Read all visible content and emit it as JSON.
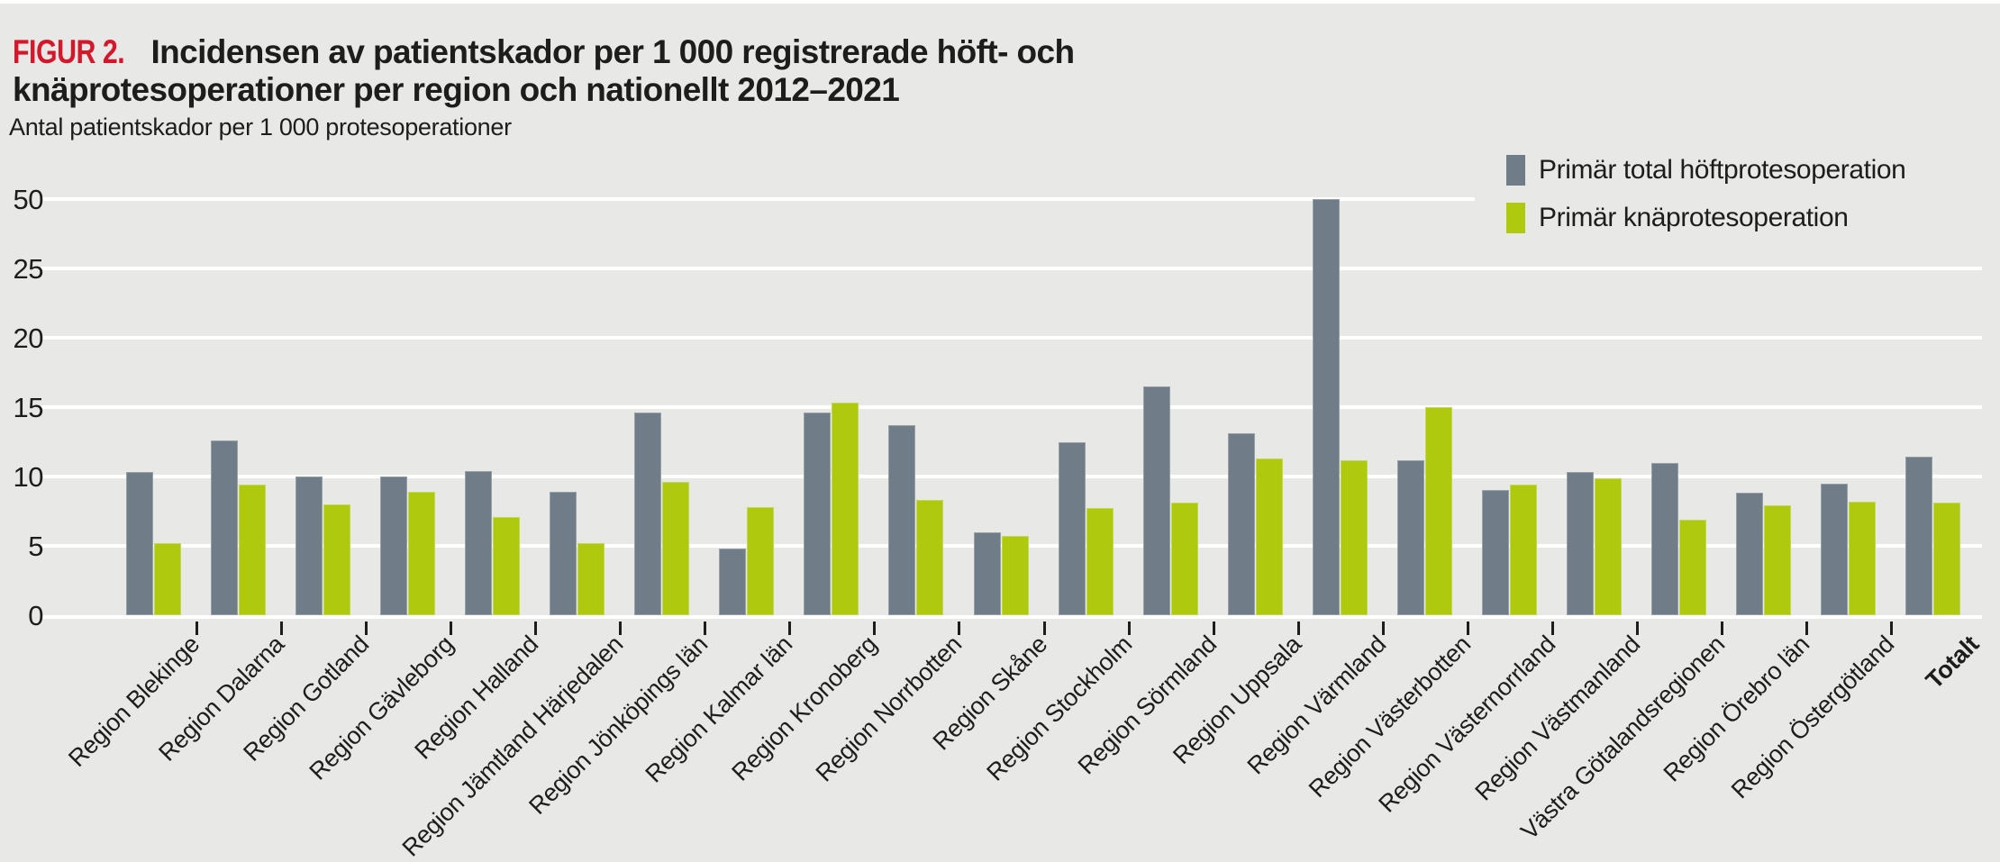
{
  "figure": {
    "label": "FIGUR 2.",
    "title_line1": "Incidensen av patientskador per 1 000 registrerade höft- och",
    "title_line2": "knäprotesoperationer per region och nationellt 2012–2021",
    "label_color": "#d5172b",
    "text_color": "#1d1d1b",
    "background_color": "#e8e8e7",
    "gridline_color": "#ffffff"
  },
  "chart_data": {
    "type": "bar",
    "title": "FIGUR 2. Incidensen av patientskador per 1 000 registrerade höft- och knäprotesoperationer per region och nationellt 2012–2021",
    "ylabel": "Antal patientskador per 1 000  protesoperationer",
    "xlabel": "",
    "grid": true,
    "legend_position": "top-right",
    "y_ticks": [
      0,
      5,
      10,
      15,
      20,
      25,
      50
    ],
    "axis_break_note": "y-axis compressed between 25 and 50",
    "categories": [
      "Region Blekinge",
      "Region Dalarna",
      "Region Gotland",
      "Region Gävleborg",
      "Region Halland",
      "Region Jämtland Härjedalen",
      "Region Jönköpings län",
      "Region Kalmar län",
      "Region Kronoberg",
      "Region Norrbotten",
      "Region Skåne",
      "Region Stockholm",
      "Region Sörmland",
      "Region Uppsala",
      "Region Värmland",
      "Region Västerbotten",
      "Region Västernorrland",
      "Region Västmanland",
      "Västra Götalandsregionen",
      "Region Örebro län",
      "Region Östergötland",
      "Totalt"
    ],
    "series": [
      {
        "name": "Primär total höftprotesoperation",
        "color": "#707d88",
        "values": [
          10.3,
          12.6,
          10.0,
          10.0,
          10.4,
          8.9,
          14.6,
          4.8,
          14.6,
          13.7,
          6.0,
          12.5,
          16.5,
          13.1,
          50,
          11.2,
          9.0,
          10.3,
          11.0,
          8.8,
          9.5,
          11.4
        ]
      },
      {
        "name": "Primär knäprotesoperation",
        "color": "#afc90e",
        "values": [
          5.2,
          9.4,
          8.0,
          8.9,
          7.1,
          5.2,
          9.6,
          7.8,
          15.3,
          8.3,
          5.7,
          7.7,
          8.1,
          11.3,
          11.2,
          15.0,
          9.4,
          9.9,
          6.9,
          7.9,
          8.2,
          8.1
        ]
      }
    ]
  }
}
